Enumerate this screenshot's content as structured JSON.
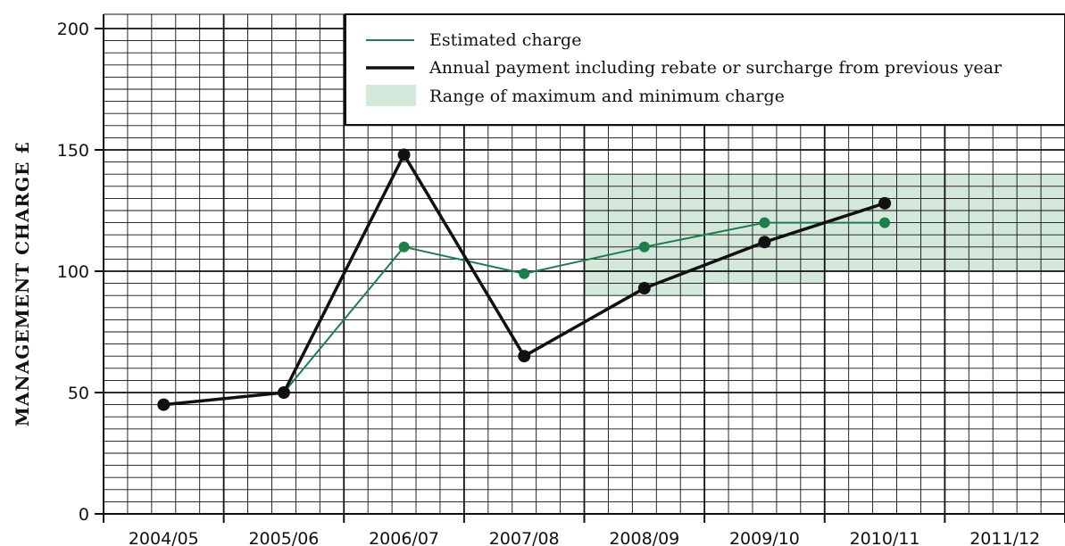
{
  "chart_data": {
    "type": "line",
    "categories": [
      "2004/05",
      "2005/06",
      "2006/07",
      "2007/08",
      "2008/09",
      "2009/10",
      "2010/11",
      "2011/12"
    ],
    "ylabel": "MANAGEMENT CHARGE £",
    "ylim": [
      0,
      200
    ],
    "yticks": [
      0,
      50,
      100,
      150,
      200
    ],
    "grid": true,
    "legend_position": "top-right",
    "series": [
      {
        "name": "Estimated charge",
        "color": "#1a7f4b",
        "values": [
          null,
          50,
          110,
          99,
          110,
          120,
          120,
          null
        ]
      },
      {
        "name": "Annual payment including rebate or surcharge from previous year",
        "color": "#111111",
        "values": [
          45,
          50,
          148,
          65,
          93,
          112,
          128,
          null
        ]
      }
    ],
    "range": {
      "name": "Range of maximum and minimum charge",
      "color": "#d3e7da",
      "bands": [
        {
          "category": "2008/09",
          "min": 90,
          "max": 140
        },
        {
          "category": "2009/10",
          "min": 95,
          "max": 140
        },
        {
          "category": "2010/11",
          "min": 100,
          "max": 140
        },
        {
          "category": "2011/12",
          "min": 100,
          "max": 140
        }
      ]
    }
  }
}
